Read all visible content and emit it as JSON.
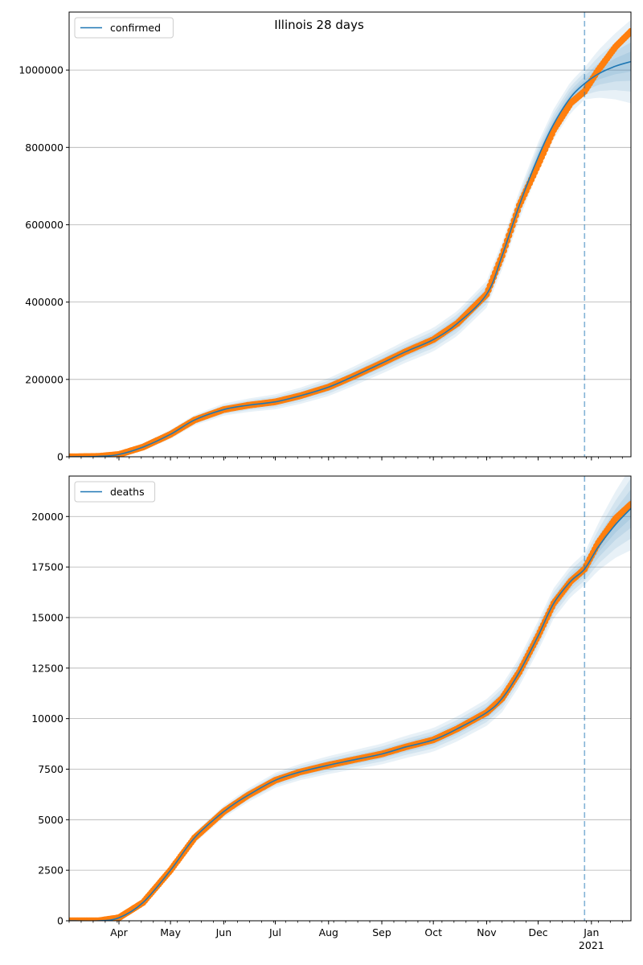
{
  "figure": {
    "title": "Illinois 28 days"
  },
  "colors": {
    "model": "#1f77b4",
    "observed": "#ff7f0e",
    "band": "#1f77b4",
    "grid": "#b0b0b0"
  },
  "x_axis": {
    "tick_labels": [
      "Apr",
      "May",
      "Jun",
      "Jul",
      "Aug",
      "Sep",
      "Oct",
      "Nov",
      "Dec",
      "Jan"
    ],
    "tick_dates": [
      "2020-04-01",
      "2020-05-01",
      "2020-06-01",
      "2020-07-01",
      "2020-08-01",
      "2020-09-01",
      "2020-10-01",
      "2020-11-01",
      "2020-12-01",
      "2021-01-01"
    ],
    "year_label": "2021",
    "range": [
      "2020-03-03",
      "2021-01-24"
    ],
    "forecast_start": "2020-12-28"
  },
  "chart_data": [
    {
      "type": "line",
      "legend": {
        "label": "confirmed",
        "placement": "top-left"
      },
      "grid": "horizontal",
      "ylim": [
        0,
        1150000
      ],
      "yticks": [
        0,
        200000,
        400000,
        600000,
        800000,
        1000000
      ],
      "ytick_labels": [
        "0",
        "200000",
        "400000",
        "600000",
        "800000",
        "1000000"
      ],
      "model": {
        "x": [
          "2020-03-03",
          "2020-03-20",
          "2020-04-01",
          "2020-04-15",
          "2020-05-01",
          "2020-05-15",
          "2020-06-01",
          "2020-06-15",
          "2020-07-01",
          "2020-07-15",
          "2020-08-01",
          "2020-08-15",
          "2020-09-01",
          "2020-09-15",
          "2020-10-01",
          "2020-10-15",
          "2020-11-01",
          "2020-11-10",
          "2020-11-20",
          "2020-12-01",
          "2020-12-10",
          "2020-12-20",
          "2020-12-28",
          "2021-01-05",
          "2021-01-15",
          "2021-01-24"
        ],
        "y": [
          0,
          1000,
          6000,
          25000,
          58000,
          95000,
          122000,
          133000,
          142000,
          157000,
          180000,
          207000,
          242000,
          272000,
          303000,
          345000,
          420000,
          520000,
          650000,
          775000,
          860000,
          930000,
          965000,
          990000,
          1010000,
          1022000
        ]
      },
      "observed": {
        "x": [
          "2020-03-03",
          "2020-03-20",
          "2020-04-01",
          "2020-04-15",
          "2020-05-01",
          "2020-05-15",
          "2020-06-01",
          "2020-06-15",
          "2020-07-01",
          "2020-07-15",
          "2020-08-01",
          "2020-08-15",
          "2020-09-01",
          "2020-09-15",
          "2020-10-01",
          "2020-10-15",
          "2020-11-01",
          "2020-11-10",
          "2020-11-20",
          "2020-12-01",
          "2020-12-10",
          "2020-12-20",
          "2020-12-28",
          "2021-01-05",
          "2021-01-15",
          "2021-01-24"
        ],
        "y": [
          0,
          1000,
          6000,
          25000,
          58000,
          95000,
          122000,
          133000,
          142000,
          157000,
          180000,
          207000,
          242000,
          272000,
          303000,
          345000,
          420000,
          520000,
          650000,
          755000,
          845000,
          915000,
          945000,
          1000000,
          1060000,
          1100000
        ]
      }
    },
    {
      "type": "line",
      "legend": {
        "label": "deaths",
        "placement": "top-left"
      },
      "grid": "horizontal",
      "ylim": [
        0,
        22000
      ],
      "yticks": [
        0,
        2500,
        5000,
        7500,
        10000,
        12500,
        15000,
        17500,
        20000
      ],
      "ytick_labels": [
        "0",
        "2500",
        "5000",
        "7500",
        "10000",
        "12500",
        "15000",
        "17500",
        "20000"
      ],
      "model": {
        "x": [
          "2020-03-03",
          "2020-03-20",
          "2020-04-01",
          "2020-04-15",
          "2020-05-01",
          "2020-05-15",
          "2020-06-01",
          "2020-06-15",
          "2020-07-01",
          "2020-07-15",
          "2020-08-01",
          "2020-08-15",
          "2020-09-01",
          "2020-09-15",
          "2020-10-01",
          "2020-10-15",
          "2020-11-01",
          "2020-11-10",
          "2020-11-20",
          "2020-12-01",
          "2020-12-10",
          "2020-12-20",
          "2020-12-28",
          "2021-01-05",
          "2021-01-15",
          "2021-01-24"
        ],
        "y": [
          0,
          0,
          150,
          900,
          2500,
          4100,
          5400,
          6200,
          6950,
          7350,
          7700,
          7950,
          8250,
          8600,
          8950,
          9500,
          10300,
          11000,
          12300,
          14100,
          15700,
          16800,
          17400,
          18500,
          19600,
          20400
        ]
      },
      "observed": {
        "x": [
          "2020-03-03",
          "2020-03-20",
          "2020-04-01",
          "2020-04-15",
          "2020-05-01",
          "2020-05-15",
          "2020-06-01",
          "2020-06-15",
          "2020-07-01",
          "2020-07-15",
          "2020-08-01",
          "2020-08-15",
          "2020-09-01",
          "2020-09-15",
          "2020-10-01",
          "2020-10-15",
          "2020-11-01",
          "2020-11-10",
          "2020-11-20",
          "2020-12-01",
          "2020-12-10",
          "2020-12-20",
          "2020-12-28",
          "2021-01-05",
          "2021-01-15",
          "2021-01-24"
        ],
        "y": [
          0,
          0,
          150,
          900,
          2500,
          4100,
          5400,
          6200,
          6950,
          7350,
          7700,
          7950,
          8250,
          8600,
          8950,
          9500,
          10300,
          11000,
          12300,
          14100,
          15700,
          16800,
          17400,
          18700,
          19900,
          20600
        ]
      }
    }
  ]
}
